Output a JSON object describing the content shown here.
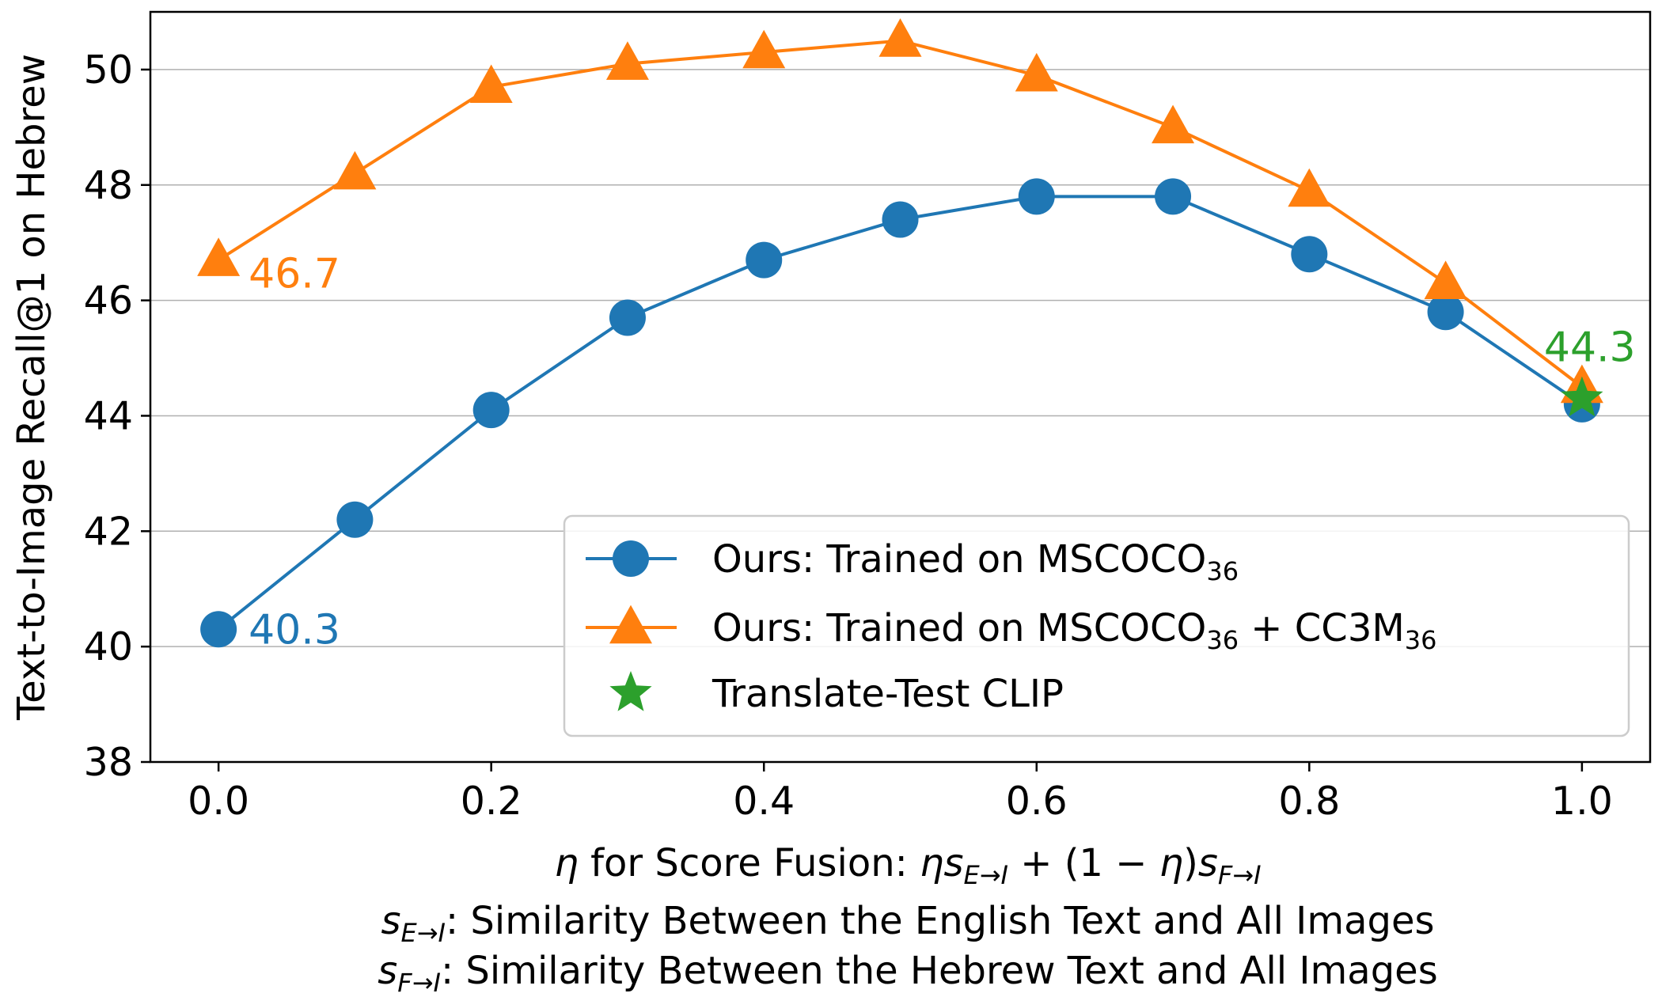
{
  "chart_data": {
    "type": "line",
    "x": [
      0.0,
      0.1,
      0.2,
      0.3,
      0.4,
      0.5,
      0.6,
      0.7,
      0.8,
      0.9,
      1.0
    ],
    "xlim": [
      -0.05,
      1.05
    ],
    "ylim": [
      38,
      51
    ],
    "xticks": [
      "0.0",
      "0.2",
      "0.4",
      "0.6",
      "0.8",
      "1.0"
    ],
    "yticks": [
      "38",
      "40",
      "42",
      "44",
      "46",
      "48",
      "50"
    ],
    "grid": "horizontal",
    "legend_position": "bottom-right",
    "ylabel": "Text-to-Image Recall@1 on Hebrew",
    "xlabel": {
      "prefix": "η",
      "text": " for Score Fusion: ",
      "formula": [
        "η",
        "s",
        "E→I",
        " + (1 − ",
        "η",
        ")",
        "s",
        "F→I"
      ]
    },
    "xlabel_line2": {
      "s": "s",
      "sub": "E→I",
      "text": ": Similarity Between the English Text and All Images"
    },
    "xlabel_line3": {
      "s": "s",
      "sub": "F→I",
      "text": ": Similarity Between the Hebrew Text and All Images"
    },
    "series": [
      {
        "name": "Ours: Trained on MSCOCO36",
        "legend_parts": [
          "Ours: Trained on MSCOCO",
          "36"
        ],
        "marker": "circle",
        "color": "#1f77b4",
        "values": [
          40.3,
          42.2,
          44.1,
          45.7,
          46.7,
          47.4,
          47.8,
          47.8,
          46.8,
          45.8,
          44.2
        ]
      },
      {
        "name": "Ours: Trained on MSCOCO36 + CC3M36",
        "legend_parts": [
          "Ours: Trained on MSCOCO",
          "36",
          " + CC3M",
          "36"
        ],
        "marker": "triangle",
        "color": "#ff7f0e",
        "values": [
          46.7,
          48.2,
          49.7,
          50.1,
          50.3,
          50.5,
          49.9,
          49.0,
          47.9,
          46.3,
          44.5
        ]
      },
      {
        "name": "Translate-Test CLIP",
        "legend_parts": [
          "Translate-Test CLIP"
        ],
        "marker": "star",
        "color": "#2ca02c",
        "x": [
          1.0
        ],
        "values": [
          44.3
        ]
      }
    ],
    "annotations": [
      {
        "text": "40.3",
        "x": 0.0,
        "y": 40.3,
        "color": "#1f77b4"
      },
      {
        "text": "46.7",
        "x": 0.0,
        "y": 46.7,
        "color": "#ff7f0e"
      },
      {
        "text": "44.3",
        "x": 1.0,
        "y": 44.3,
        "color": "#2ca02c"
      }
    ]
  }
}
